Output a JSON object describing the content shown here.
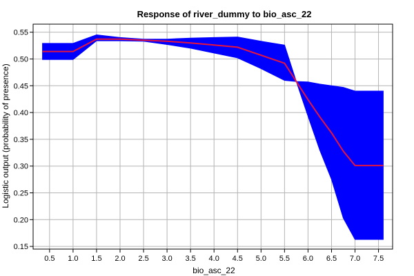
{
  "chart_data": {
    "type": "line",
    "title": "Response of river_dummy to bio_asc_22",
    "xlabel": "bio_asc_22",
    "ylabel": "Logistic output (probability of presence)",
    "xlim": [
      0.15,
      7.8
    ],
    "ylim": [
      0.145,
      0.565
    ],
    "x_ticks": [
      0.5,
      1.0,
      1.5,
      2.0,
      2.5,
      3.0,
      3.5,
      4.0,
      4.5,
      5.0,
      5.5,
      6.0,
      6.5,
      7.0,
      7.5
    ],
    "x_tick_labels": [
      "0.5",
      "1.0",
      "1.5",
      "2.0",
      "2.5",
      "3.0",
      "3.5",
      "4.0",
      "4.5",
      "5.0",
      "5.5",
      "6.0",
      "6.5",
      "7.0",
      "7.5"
    ],
    "y_ticks": [
      0.15,
      0.2,
      0.25,
      0.3,
      0.35,
      0.4,
      0.45,
      0.5,
      0.55
    ],
    "y_tick_labels": [
      "0.15",
      "0.20",
      "0.25",
      "0.30",
      "0.35",
      "0.40",
      "0.45",
      "0.50",
      "0.55"
    ],
    "grid": true,
    "colors": {
      "band": "#0000ff",
      "mean": "#e8143c",
      "grid": "#b4b4b4",
      "axis": "#000000"
    },
    "series": [
      {
        "role": "mean",
        "x": [
          0.35,
          1.0,
          1.5,
          2.0,
          2.5,
          3.0,
          3.5,
          4.0,
          4.5,
          5.0,
          5.5,
          5.75,
          6.0,
          6.25,
          6.5,
          6.75,
          7.0,
          7.25,
          7.6
        ],
        "y": [
          0.514,
          0.514,
          0.537,
          0.537,
          0.535,
          0.533,
          0.53,
          0.526,
          0.522,
          0.507,
          0.492,
          0.458,
          0.424,
          0.392,
          0.362,
          0.328,
          0.301,
          0.301,
          0.301
        ]
      },
      {
        "role": "band_upper",
        "x": [
          0.35,
          1.0,
          1.5,
          2.0,
          2.5,
          3.0,
          3.5,
          4.0,
          4.5,
          5.0,
          5.5,
          5.75,
          6.0,
          6.25,
          6.5,
          6.75,
          7.0,
          7.25,
          7.6
        ],
        "y": [
          0.529,
          0.529,
          0.545,
          0.54,
          0.537,
          0.537,
          0.539,
          0.54,
          0.541,
          0.533,
          0.526,
          0.458,
          0.457,
          0.453,
          0.45,
          0.447,
          0.44,
          0.44,
          0.44
        ]
      },
      {
        "role": "band_lower",
        "x": [
          0.35,
          1.0,
          1.5,
          2.0,
          2.5,
          3.0,
          3.5,
          4.0,
          4.5,
          5.0,
          5.5,
          5.75,
          6.0,
          6.25,
          6.5,
          6.75,
          7.0,
          7.25,
          7.6
        ],
        "y": [
          0.499,
          0.499,
          0.534,
          0.534,
          0.533,
          0.527,
          0.52,
          0.511,
          0.502,
          0.482,
          0.46,
          0.458,
          0.393,
          0.33,
          0.275,
          0.203,
          0.163,
          0.163,
          0.163
        ]
      }
    ]
  }
}
